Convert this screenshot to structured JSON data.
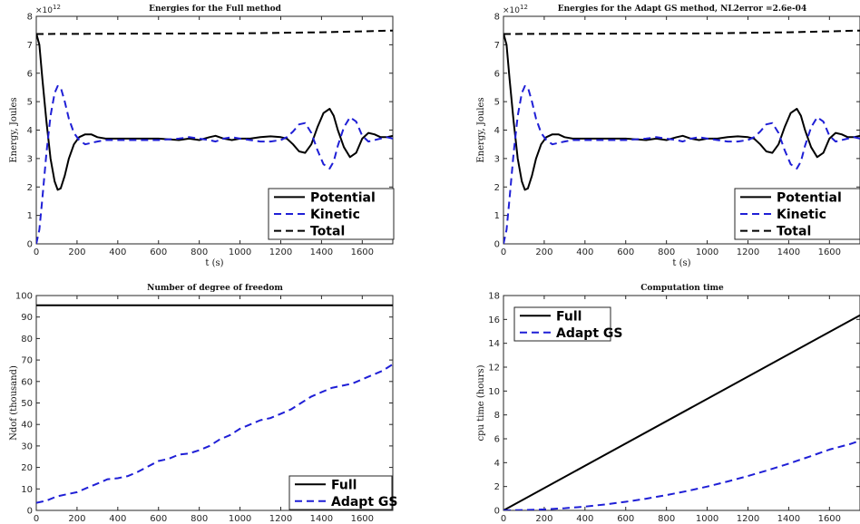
{
  "chart_data": [
    {
      "type": "line",
      "title": "Energies for the Full method",
      "xlabel": "t (s)",
      "ylabel": "Energy, Joules",
      "multiplier": "×10",
      "multiplier_exp": "12",
      "xlim": [
        0,
        1750
      ],
      "ylim": [
        0,
        8
      ],
      "xticks": [
        0,
        200,
        400,
        600,
        800,
        1000,
        1200,
        1400,
        1600
      ],
      "yticks": [
        0,
        1,
        2,
        3,
        4,
        5,
        6,
        7,
        8
      ],
      "legend_position": "bottom-right",
      "grid": false,
      "series": [
        {
          "name": "Potential",
          "color": "#000000",
          "dash": "solid",
          "x": [
            0,
            15,
            30,
            50,
            70,
            90,
            105,
            120,
            140,
            160,
            185,
            210,
            240,
            270,
            300,
            340,
            400,
            500,
            600,
            700,
            750,
            800,
            850,
            880,
            920,
            960,
            1000,
            1050,
            1100,
            1150,
            1200,
            1230,
            1260,
            1290,
            1320,
            1350,
            1380,
            1410,
            1440,
            1460,
            1480,
            1510,
            1540,
            1570,
            1600,
            1630,
            1660,
            1690,
            1720,
            1750
          ],
          "y": [
            7.4,
            7.0,
            5.8,
            4.3,
            3.0,
            2.2,
            1.9,
            1.95,
            2.4,
            3.0,
            3.5,
            3.75,
            3.85,
            3.85,
            3.75,
            3.7,
            3.7,
            3.7,
            3.7,
            3.65,
            3.7,
            3.65,
            3.75,
            3.8,
            3.7,
            3.65,
            3.7,
            3.7,
            3.75,
            3.78,
            3.75,
            3.7,
            3.5,
            3.25,
            3.2,
            3.5,
            4.1,
            4.6,
            4.75,
            4.5,
            4.0,
            3.4,
            3.05,
            3.2,
            3.7,
            3.9,
            3.85,
            3.75,
            3.75,
            3.8
          ]
        },
        {
          "name": "Kinetic",
          "color": "#1f1fd6",
          "dash": "dashed",
          "x": [
            0,
            15,
            30,
            50,
            70,
            90,
            105,
            120,
            140,
            160,
            185,
            210,
            240,
            270,
            300,
            340,
            400,
            500,
            600,
            700,
            750,
            800,
            850,
            880,
            920,
            960,
            1000,
            1050,
            1100,
            1150,
            1200,
            1230,
            1260,
            1290,
            1320,
            1350,
            1380,
            1410,
            1440,
            1460,
            1480,
            1510,
            1540,
            1570,
            1600,
            1630,
            1660,
            1690,
            1720,
            1750
          ],
          "y": [
            0.0,
            0.5,
            1.6,
            3.2,
            4.5,
            5.3,
            5.55,
            5.5,
            5.0,
            4.4,
            3.9,
            3.65,
            3.5,
            3.55,
            3.6,
            3.65,
            3.65,
            3.65,
            3.65,
            3.7,
            3.75,
            3.7,
            3.65,
            3.6,
            3.7,
            3.75,
            3.7,
            3.65,
            3.6,
            3.6,
            3.65,
            3.75,
            3.95,
            4.2,
            4.25,
            3.9,
            3.3,
            2.8,
            2.65,
            2.9,
            3.45,
            4.1,
            4.45,
            4.3,
            3.8,
            3.6,
            3.65,
            3.7,
            3.75,
            3.7
          ]
        },
        {
          "name": "Total",
          "color": "#000000",
          "dash": "dashed",
          "x": [
            0,
            500,
            1000,
            1200,
            1400,
            1600,
            1750
          ],
          "y": [
            7.38,
            7.39,
            7.4,
            7.42,
            7.44,
            7.47,
            7.5
          ]
        }
      ]
    },
    {
      "type": "line",
      "title": "Energies for the Adapt GS method, NL2error =2.6e-04",
      "xlabel": "t (s)",
      "ylabel": "Energy, Joules",
      "multiplier": "×10",
      "multiplier_exp": "12",
      "xlim": [
        0,
        1750
      ],
      "ylim": [
        0,
        8
      ],
      "xticks": [
        0,
        200,
        400,
        600,
        800,
        1000,
        1200,
        1400,
        1600
      ],
      "yticks": [
        0,
        1,
        2,
        3,
        4,
        5,
        6,
        7,
        8
      ],
      "legend_position": "bottom-right",
      "grid": false,
      "series": [
        {
          "name": "Potential",
          "color": "#000000",
          "dash": "solid",
          "x": [
            0,
            15,
            30,
            50,
            70,
            90,
            105,
            120,
            140,
            160,
            185,
            210,
            240,
            270,
            300,
            340,
            400,
            500,
            600,
            700,
            750,
            800,
            850,
            880,
            920,
            960,
            1000,
            1050,
            1100,
            1150,
            1200,
            1230,
            1260,
            1290,
            1320,
            1350,
            1380,
            1410,
            1440,
            1460,
            1480,
            1510,
            1540,
            1570,
            1600,
            1630,
            1660,
            1690,
            1720,
            1750
          ],
          "y": [
            7.4,
            7.0,
            5.8,
            4.3,
            3.0,
            2.2,
            1.9,
            1.95,
            2.4,
            3.0,
            3.5,
            3.75,
            3.85,
            3.85,
            3.75,
            3.7,
            3.7,
            3.7,
            3.7,
            3.65,
            3.7,
            3.65,
            3.75,
            3.8,
            3.7,
            3.65,
            3.7,
            3.7,
            3.75,
            3.78,
            3.75,
            3.7,
            3.5,
            3.25,
            3.2,
            3.5,
            4.1,
            4.6,
            4.75,
            4.5,
            4.0,
            3.4,
            3.05,
            3.2,
            3.7,
            3.9,
            3.85,
            3.75,
            3.75,
            3.8
          ]
        },
        {
          "name": "Kinetic",
          "color": "#1f1fd6",
          "dash": "dashed",
          "x": [
            0,
            15,
            30,
            50,
            70,
            90,
            105,
            120,
            140,
            160,
            185,
            210,
            240,
            270,
            300,
            340,
            400,
            500,
            600,
            700,
            750,
            800,
            850,
            880,
            920,
            960,
            1000,
            1050,
            1100,
            1150,
            1200,
            1230,
            1260,
            1290,
            1320,
            1350,
            1380,
            1410,
            1440,
            1460,
            1480,
            1510,
            1540,
            1570,
            1600,
            1630,
            1660,
            1690,
            1720,
            1750
          ],
          "y": [
            0.0,
            0.5,
            1.6,
            3.2,
            4.5,
            5.3,
            5.55,
            5.5,
            5.0,
            4.4,
            3.9,
            3.65,
            3.5,
            3.55,
            3.6,
            3.65,
            3.65,
            3.65,
            3.65,
            3.7,
            3.75,
            3.7,
            3.65,
            3.6,
            3.7,
            3.75,
            3.7,
            3.65,
            3.6,
            3.6,
            3.65,
            3.75,
            3.95,
            4.2,
            4.25,
            3.9,
            3.3,
            2.8,
            2.65,
            2.9,
            3.45,
            4.1,
            4.45,
            4.3,
            3.8,
            3.6,
            3.65,
            3.7,
            3.75,
            3.7
          ]
        },
        {
          "name": "Total",
          "color": "#000000",
          "dash": "dashed",
          "x": [
            0,
            500,
            1000,
            1200,
            1400,
            1600,
            1750
          ],
          "y": [
            7.38,
            7.39,
            7.4,
            7.42,
            7.44,
            7.47,
            7.5
          ]
        }
      ]
    },
    {
      "type": "line",
      "title": "Number of degree of freedom",
      "xlabel": "t (s)",
      "ylabel": "Ndof (thousand)",
      "xlim": [
        0,
        1750
      ],
      "ylim": [
        0,
        100
      ],
      "xticks": [
        0,
        200,
        400,
        600,
        800,
        1000,
        1200,
        1400,
        1600
      ],
      "yticks": [
        0,
        10,
        20,
        30,
        40,
        50,
        60,
        70,
        80,
        90,
        100
      ],
      "legend_position": "bottom-right",
      "grid": false,
      "series": [
        {
          "name": "Full",
          "color": "#000000",
          "dash": "solid",
          "x": [
            0,
            1750
          ],
          "y": [
            95.5,
            95.5
          ]
        },
        {
          "name": "Adapt GS",
          "color": "#1f1fd6",
          "dash": "dashed",
          "x": [
            0,
            50,
            100,
            150,
            200,
            250,
            300,
            350,
            400,
            450,
            500,
            550,
            600,
            650,
            700,
            750,
            800,
            850,
            900,
            950,
            1000,
            1050,
            1100,
            1150,
            1200,
            1250,
            1300,
            1350,
            1400,
            1450,
            1500,
            1550,
            1600,
            1650,
            1700,
            1750
          ],
          "y": [
            3.5,
            4.5,
            6.5,
            7.5,
            8.5,
            10.5,
            12.5,
            14.5,
            15,
            16,
            18,
            20.5,
            23,
            24,
            26,
            26.5,
            28,
            30,
            33,
            35,
            38,
            40,
            42,
            43,
            45,
            47,
            50,
            53,
            55,
            57,
            58,
            59,
            61,
            63,
            65,
            68
          ]
        }
      ]
    },
    {
      "type": "line",
      "title": "Computation time",
      "xlabel": "t (s)",
      "ylabel": "cpu time (hours)",
      "xlim": [
        0,
        1750
      ],
      "ylim": [
        0,
        18
      ],
      "xticks": [
        0,
        200,
        400,
        600,
        800,
        1000,
        1200,
        1400,
        1600
      ],
      "yticks": [
        0,
        2,
        4,
        6,
        8,
        10,
        12,
        14,
        16,
        18
      ],
      "legend_position": "top-left",
      "grid": false,
      "series": [
        {
          "name": "Full",
          "color": "#000000",
          "dash": "solid",
          "x": [
            0,
            1750
          ],
          "y": [
            0,
            16.35
          ]
        },
        {
          "name": "Adapt GS",
          "color": "#1f1fd6",
          "dash": "dashed",
          "x": [
            0,
            100,
            200,
            300,
            400,
            500,
            600,
            700,
            800,
            900,
            1000,
            1100,
            1200,
            1300,
            1400,
            1500,
            1600,
            1700,
            1750
          ],
          "y": [
            0,
            0.03,
            0.08,
            0.18,
            0.32,
            0.5,
            0.72,
            0.98,
            1.28,
            1.62,
            2.0,
            2.42,
            2.88,
            3.38,
            3.92,
            4.5,
            5.1,
            5.55,
            5.85
          ]
        }
      ]
    }
  ]
}
